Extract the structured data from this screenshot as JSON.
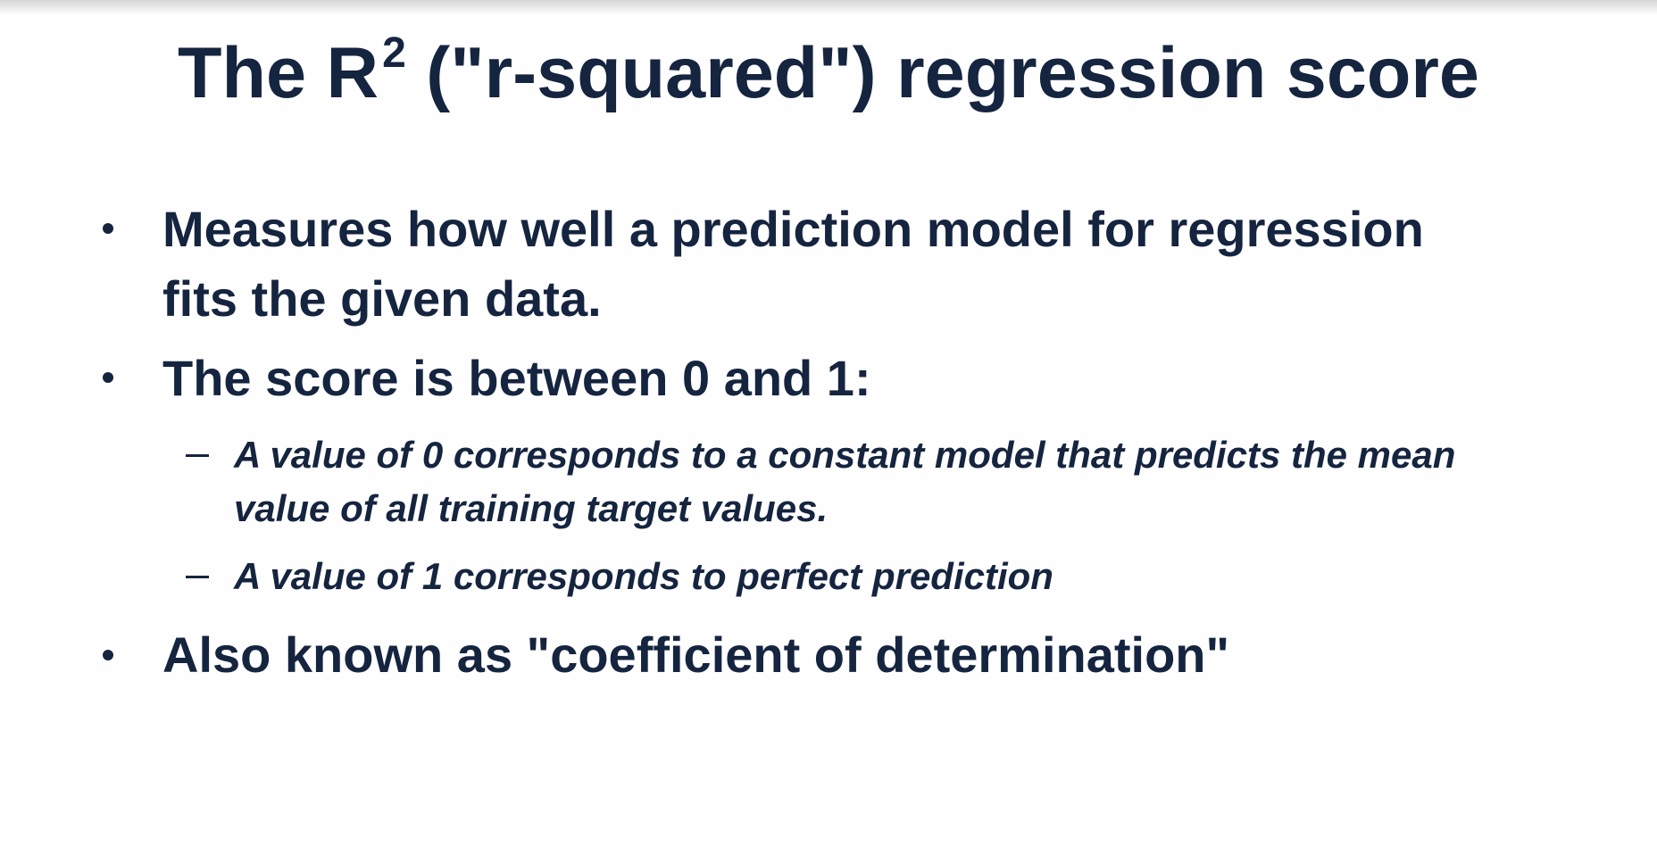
{
  "slide": {
    "title_prefix": "The R",
    "title_sup": "2",
    "title_suffix": " (\"r-squared\") regression score",
    "bullets": [
      {
        "line1": "Measures how well a prediction model for regression",
        "line2": "fits the given data."
      },
      {
        "line1": "The score is between 0 and 1:",
        "subbullets": [
          {
            "line1": "A value of 0 corresponds to a constant model that predicts the mean",
            "line2": "value of all training target values."
          },
          {
            "line1": "A value of 1 corresponds to perfect prediction"
          }
        ]
      },
      {
        "line1": "Also known as \"coefficient of determination\""
      }
    ]
  }
}
